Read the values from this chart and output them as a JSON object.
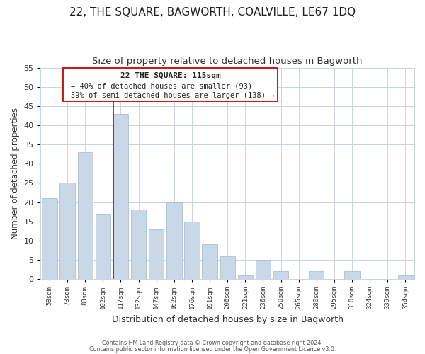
{
  "title": "22, THE SQUARE, BAGWORTH, COALVILLE, LE67 1DQ",
  "subtitle": "Size of property relative to detached houses in Bagworth",
  "xlabel": "Distribution of detached houses by size in Bagworth",
  "ylabel": "Number of detached properties",
  "bar_labels": [
    "58sqm",
    "73sqm",
    "88sqm",
    "102sqm",
    "117sqm",
    "132sqm",
    "147sqm",
    "162sqm",
    "176sqm",
    "191sqm",
    "206sqm",
    "221sqm",
    "236sqm",
    "250sqm",
    "265sqm",
    "280sqm",
    "295sqm",
    "310sqm",
    "324sqm",
    "339sqm",
    "354sqm"
  ],
  "bar_values": [
    21,
    25,
    33,
    17,
    43,
    18,
    13,
    20,
    15,
    9,
    6,
    1,
    5,
    2,
    0,
    2,
    0,
    2,
    0,
    0,
    1
  ],
  "bar_color": "#c8d8e8",
  "bar_edge_color": "#a0b8cc",
  "vline_index": 4,
  "vline_color": "#cc0000",
  "ylim": [
    0,
    55
  ],
  "yticks": [
    0,
    5,
    10,
    15,
    20,
    25,
    30,
    35,
    40,
    45,
    50,
    55
  ],
  "annotation_title": "22 THE SQUARE: 115sqm",
  "annotation_line1": "← 40% of detached houses are smaller (93)",
  "annotation_line2": "59% of semi-detached houses are larger (138) →",
  "annotation_box_color": "#ffffff",
  "annotation_box_edge": "#cc0000",
  "footer_line1": "Contains HM Land Registry data © Crown copyright and database right 2024.",
  "footer_line2": "Contains public sector information licensed under the Open Government Licence v3.0.",
  "background_color": "#ffffff",
  "grid_color": "#c8d4e0",
  "title_fontsize": 11,
  "subtitle_fontsize": 9.5
}
